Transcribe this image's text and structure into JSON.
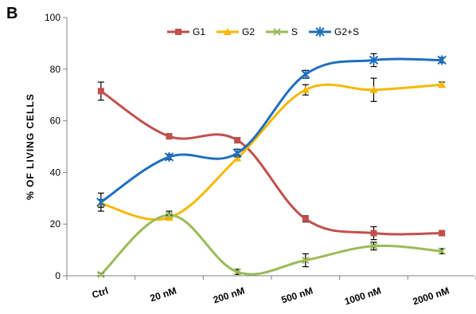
{
  "panel_label": "B",
  "chart_data": {
    "type": "line",
    "ylabel": "% OF LIVING CELLS",
    "categories": [
      "Ctrl",
      "20 nM",
      "200 nM",
      "500 nM",
      "1000 nM",
      "2000 nM"
    ],
    "ylim": [
      0,
      100
    ],
    "yticks": [
      "0",
      "20",
      "40",
      "60",
      "80",
      "100"
    ],
    "grid": false,
    "legend_position": "top-center",
    "series": [
      {
        "name": "G1",
        "color": "#c0504d",
        "marker": "square",
        "values": [
          71.5,
          54,
          52.5,
          22,
          16.5,
          16.5
        ],
        "errors": [
          3.5,
          1,
          1,
          1.2,
          2.5,
          1
        ]
      },
      {
        "name": "G2",
        "color": "#f7b800",
        "marker": "triangle",
        "values": [
          28,
          22.5,
          45.5,
          72,
          72,
          74
        ],
        "errors": [
          1.5,
          1,
          1,
          2,
          4.5,
          1
        ]
      },
      {
        "name": "S",
        "color": "#9bbb59",
        "marker": "x",
        "values": [
          0.5,
          23.5,
          1.5,
          6,
          11.5,
          9.5
        ],
        "errors": [
          0.5,
          1.5,
          1,
          2.5,
          1.5,
          1
        ]
      },
      {
        "name": "G2+S",
        "color": "#1f6fbf",
        "marker": "star",
        "values": [
          28.5,
          46,
          47.5,
          78,
          83.5,
          83.5
        ],
        "errors": [
          3.5,
          1,
          1.5,
          1.5,
          2.5,
          1
        ]
      }
    ]
  }
}
